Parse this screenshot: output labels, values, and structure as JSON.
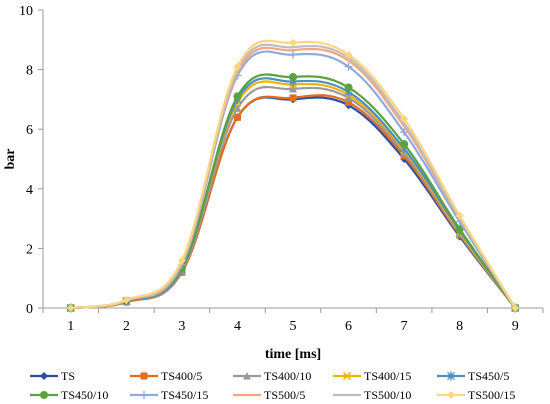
{
  "chart_data": {
    "type": "line",
    "xlabel": "time [ms]",
    "ylabel": "bar",
    "x": [
      1,
      2,
      3,
      4,
      5,
      6,
      7,
      8,
      9
    ],
    "xlim": [
      0.5,
      9.5
    ],
    "ylim": [
      0,
      10
    ],
    "xticks": [
      "1",
      "2",
      "3",
      "4",
      "5",
      "6",
      "7",
      "8",
      "9"
    ],
    "yticks": [
      "0",
      "2",
      "4",
      "6",
      "8",
      "10"
    ],
    "grid": false,
    "legend_position": "bottom",
    "series": [
      {
        "name": "TS",
        "color": "#2E4EA3",
        "marker": "diamond",
        "values": [
          0,
          0.2,
          1.2,
          6.4,
          7.0,
          6.8,
          5.0,
          2.4,
          0
        ]
      },
      {
        "name": "TS400/5",
        "color": "#E36C1D",
        "marker": "square",
        "values": [
          0,
          0.2,
          1.2,
          6.4,
          7.05,
          6.9,
          5.1,
          2.45,
          0
        ]
      },
      {
        "name": "TS400/10",
        "color": "#9A9A9A",
        "marker": "triangle",
        "values": [
          0,
          0.22,
          1.25,
          6.7,
          7.35,
          7.05,
          5.2,
          2.5,
          0
        ]
      },
      {
        "name": "TS400/15",
        "color": "#F0B400",
        "marker": "x",
        "values": [
          0,
          0.22,
          1.3,
          6.9,
          7.5,
          7.15,
          5.3,
          2.55,
          0
        ]
      },
      {
        "name": "TS450/5",
        "color": "#4A90C8",
        "marker": "star",
        "values": [
          0,
          0.23,
          1.3,
          7.0,
          7.6,
          7.25,
          5.35,
          2.6,
          0
        ]
      },
      {
        "name": "TS450/10",
        "color": "#5BA140",
        "marker": "circle",
        "values": [
          0,
          0.24,
          1.35,
          7.1,
          7.75,
          7.4,
          5.5,
          2.65,
          0
        ]
      },
      {
        "name": "TS450/15",
        "color": "#8FAADC",
        "marker": "plus",
        "values": [
          0,
          0.25,
          1.45,
          7.8,
          8.5,
          8.1,
          5.9,
          2.9,
          0
        ]
      },
      {
        "name": "TS500/5",
        "color": "#F4A582",
        "marker": "none",
        "values": [
          0,
          0.25,
          1.5,
          7.9,
          8.65,
          8.3,
          6.1,
          3.0,
          0
        ]
      },
      {
        "name": "TS500/10",
        "color": "#BDBDBD",
        "marker": "none",
        "values": [
          0,
          0.26,
          1.55,
          8.0,
          8.75,
          8.4,
          6.2,
          3.02,
          0
        ]
      },
      {
        "name": "TS500/15",
        "color": "#FFD57F",
        "marker": "diamond",
        "values": [
          0,
          0.27,
          1.6,
          8.1,
          8.9,
          8.5,
          6.35,
          3.1,
          0
        ]
      }
    ]
  }
}
